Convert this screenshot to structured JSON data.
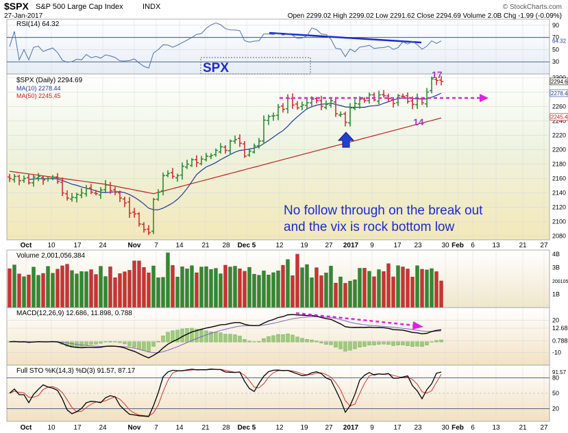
{
  "header": {
    "symbol": "$SPX",
    "name": "S&P 500 Large Cap Index",
    "exchange": "INDX",
    "date": "27-Jan-2017",
    "ohlc_text": "Open 2299.02  High 2299.02  Low 2291.62  Close 2294.69  Volume 2.0B  Chg -1.99 (-0.09%)",
    "watermark": "© StockCharts.com"
  },
  "colors": {
    "up": "#2e8b2e",
    "down": "#d03030",
    "ma10": "#1a3a9a",
    "ma50": "#c02020",
    "annotation_magenta": "#e020e0",
    "annotation_blue": "#1a2ad0",
    "label_purple": "#a040b0"
  },
  "annotations": {
    "spx_label": "SPX",
    "label_17": "17",
    "label_14": "14",
    "note_line1": "No follow through on the break out",
    "note_line2": "and the vix is rock bottom low",
    "up_arrow": "up-arrow-icon"
  },
  "chart_data": [
    {
      "type": "line",
      "panel": "rsi",
      "title": "RSI(14) 64.32",
      "last_value": 64.32,
      "y_ticks": [
        30,
        50,
        70,
        90
      ],
      "ylim": [
        10,
        100
      ]
    },
    {
      "type": "candlestick",
      "panel": "price",
      "title": "$SPX (Daily) 2294.69",
      "legend": [
        "MA(10) 2278.44",
        "MA(50) 2245.45"
      ],
      "ylim": [
        2075,
        2305
      ],
      "y_ticks": [
        2080,
        2100,
        2120,
        2140,
        2160,
        2180,
        2200,
        2220,
        2240,
        2260,
        2280,
        2300
      ],
      "y_tick_labels": [
        "2080",
        "2100",
        "2120",
        "2140",
        "2160",
        "2180",
        "2200",
        "2220",
        "2240",
        "2260",
        "2280",
        "2300"
      ],
      "last_labels": [
        "2294.69",
        "2278.44",
        "2245.45"
      ],
      "x_ticks": [
        "Oct",
        "10",
        "17",
        "24",
        "Nov",
        "7",
        "14",
        "21",
        "28",
        "Dec 5",
        "12",
        "19",
        "27",
        "2017",
        "9",
        "17",
        "23",
        "30",
        "Feb",
        "6",
        "13",
        "21",
        "27"
      ],
      "close_series": [
        2160,
        2163,
        2157,
        2160,
        2154,
        2162,
        2163,
        2158,
        2160,
        2162,
        2156,
        2140,
        2133,
        2134,
        2138,
        2140,
        2146,
        2141,
        2139,
        2144,
        2151,
        2143,
        2141,
        2133,
        2126,
        2112,
        2111,
        2097,
        2089,
        2085,
        2131,
        2141,
        2164,
        2167,
        2163,
        2164,
        2177,
        2180,
        2186,
        2182,
        2187,
        2191,
        2192,
        2199,
        2204,
        2199,
        2212,
        2214,
        2209,
        2191,
        2198,
        2205,
        2212,
        2241,
        2246,
        2247,
        2259,
        2256,
        2271,
        2262,
        2258,
        2262,
        2265,
        2270,
        2268,
        2260,
        2263,
        2268,
        2250,
        2249,
        2238,
        2258,
        2264,
        2270,
        2268,
        2276,
        2269,
        2276,
        2275,
        2271,
        2264,
        2275,
        2274,
        2267,
        2263,
        2271,
        2265,
        2280,
        2298,
        2296,
        2294.69
      ]
    },
    {
      "type": "bar",
      "panel": "volume",
      "title": "Volume 2,001,056,384",
      "y_tick_labels": [
        "1B",
        "2001056384",
        "3B",
        "4B"
      ]
    },
    {
      "type": "line",
      "panel": "macd",
      "title": "MACD(12,26,9) 12.686, 11.898, 0.788",
      "last_values": [
        12.686,
        11.898,
        0.788
      ],
      "y_tick_labels": [
        "-10",
        "0.788",
        "12.686",
        "20"
      ]
    },
    {
      "type": "line",
      "panel": "stochastic",
      "title": "Full STO %K(14,3) %D(3) 91.57, 87.17",
      "last_values": [
        91.57,
        87.17
      ],
      "y_tick_labels": [
        "20",
        "50",
        "80",
        "91.57"
      ],
      "x_ticks": [
        "Oct",
        "10",
        "17",
        "24",
        "Nov",
        "7",
        "14",
        "21",
        "28",
        "Dec 5",
        "12",
        "19",
        "27",
        "2017",
        "9",
        "17",
        "23",
        "30",
        "Feb",
        "6",
        "13",
        "21",
        "27"
      ]
    }
  ]
}
